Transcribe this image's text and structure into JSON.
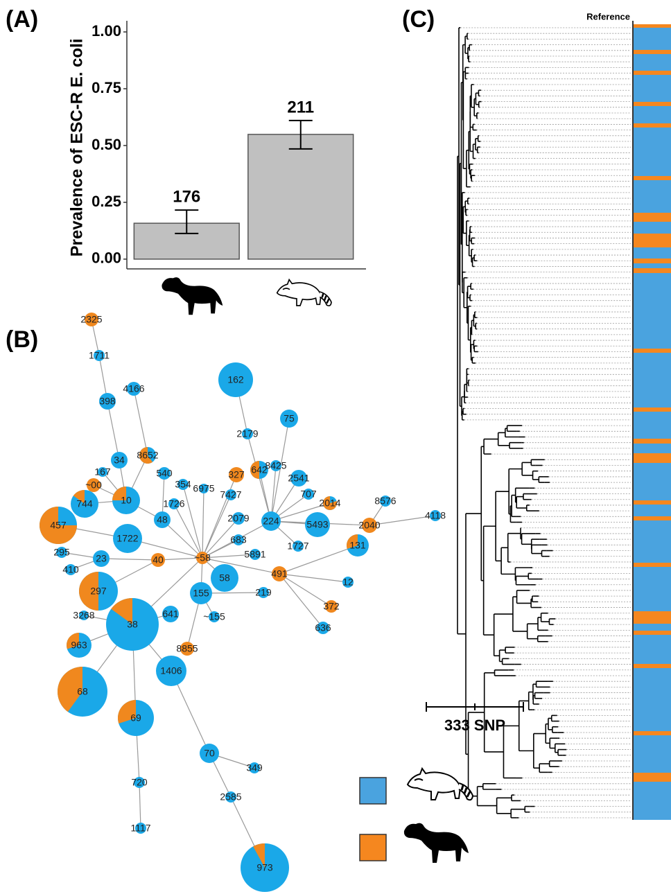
{
  "chart_data": {
    "type": "bar",
    "ylabel": "Prevalence of ESC-R E. coli",
    "categories": [
      null,
      null
    ],
    "values": [
      0.158,
      0.549
    ],
    "error_low": [
      0.113,
      0.485
    ],
    "error_high": [
      0.216,
      0.61
    ],
    "sample_sizes": [
      176,
      211
    ],
    "color": "#c0c0c0",
    "ylim": [
      -0.043,
      1.049
    ],
    "yticks": [
      {
        "value": 0,
        "label": "0.00"
      },
      {
        "value": 0.25,
        "label": "0.25"
      },
      {
        "value": 0.5,
        "label": "0.50"
      },
      {
        "value": 0.75,
        "label": "0.75"
      },
      {
        "value": 1,
        "label": "1.00"
      }
    ]
  },
  "panel_labels": [
    "(A)",
    "(B)",
    "(C)"
  ],
  "legend": [
    {
      "color": "#4aa3df"
    },
    {
      "color": "#f5871f"
    }
  ],
  "network": {
    "node_colors": [
      "#1aa8e8",
      "#f0881e"
    ],
    "nodes": [
      "2325",
      "1711",
      "4166",
      "398",
      "162",
      "2179",
      "75",
      "34",
      "8652",
      "167",
      "~00",
      "540",
      "354",
      "6975",
      "327",
      "642",
      "8425",
      "2541",
      "744",
      "10",
      "1726",
      "7427",
      "707",
      "2014",
      "8576",
      "4118",
      "48",
      "2079",
      "224",
      "5493",
      "2040",
      "457",
      "1722",
      "683",
      "1727",
      "131",
      "295",
      "23",
      "40",
      "~58",
      "5891",
      "410",
      "491",
      "12",
      "297",
      "58",
      "155",
      "219",
      "372",
      "3268",
      "38",
      "641",
      "~155",
      "636",
      "963",
      "8855",
      "68",
      "1406",
      "69",
      "70",
      "349",
      "720",
      "2585",
      "1117",
      "973"
    ]
  },
  "tree": {
    "reference_label": "Reference",
    "scale_label": "333 SNP"
  }
}
